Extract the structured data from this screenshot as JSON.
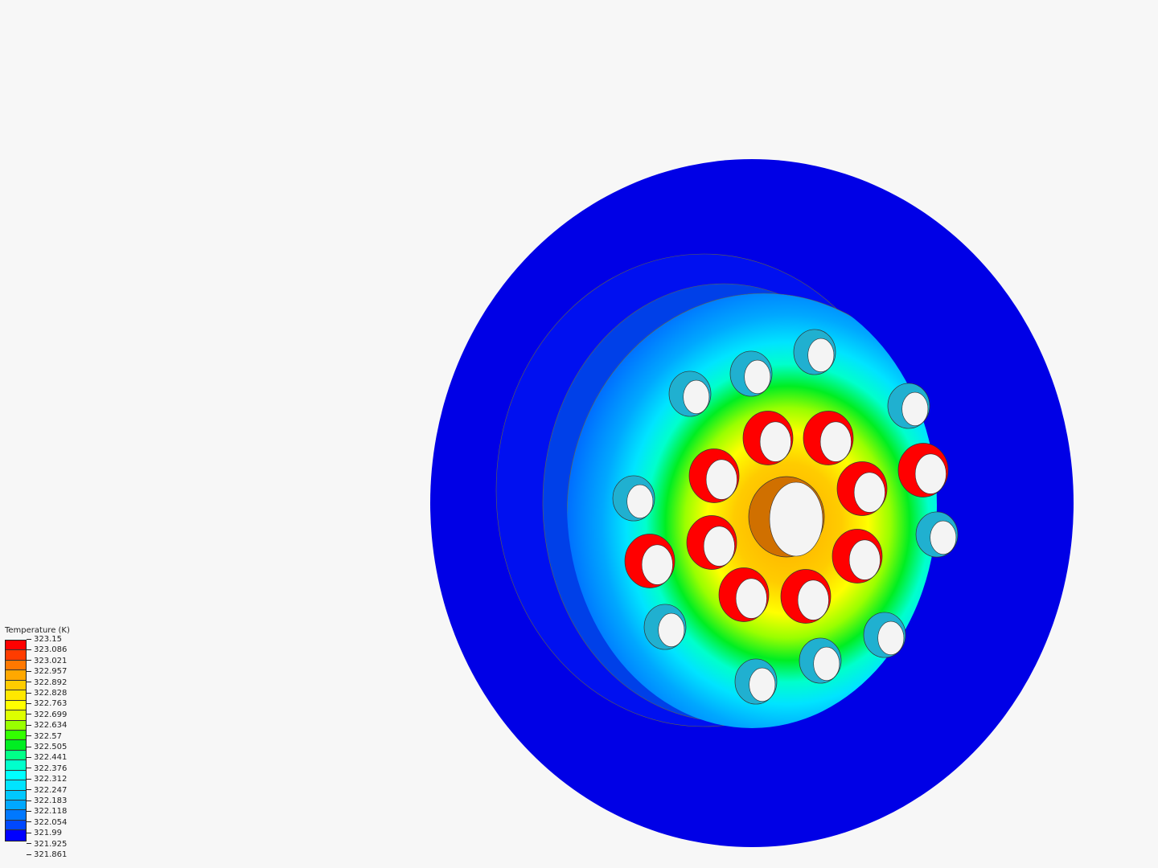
{
  "legend": {
    "title": "Temperature (K)",
    "labels": [
      "323.15",
      "323.086",
      "323.021",
      "322.957",
      "322.892",
      "322.828",
      "322.763",
      "322.699",
      "322.634",
      "322.57",
      "322.505",
      "322.441",
      "322.376",
      "322.312",
      "322.247",
      "322.183",
      "322.118",
      "322.054",
      "321.99",
      "321.925",
      "321.861"
    ],
    "colors": [
      "#ff0000",
      "#ff3c00",
      "#ff7800",
      "#ffa800",
      "#ffcc00",
      "#ffe800",
      "#ffff00",
      "#ddff00",
      "#99ff00",
      "#33ff00",
      "#00ee22",
      "#00ff88",
      "#00ffcc",
      "#00ffff",
      "#00e4ff",
      "#00c8ff",
      "#00a8ff",
      "#0078ff",
      "#0048ff",
      "#0000ff"
    ]
  },
  "model": {
    "body_color": "#0000e6",
    "hole_color": "#f4f4f4"
  }
}
